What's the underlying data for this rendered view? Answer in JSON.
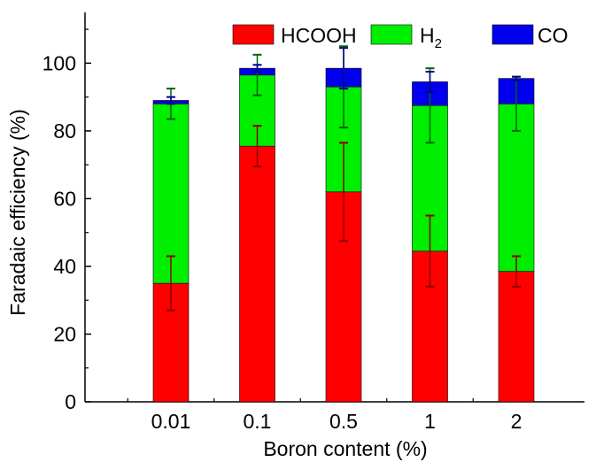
{
  "chart_data": {
    "type": "bar",
    "stacked": true,
    "title": "",
    "xlabel": "Boron content (%)",
    "ylabel": "Faradaic efficiency (%)",
    "ylim": [
      0,
      115
    ],
    "yticks": [
      0,
      20,
      40,
      60,
      80,
      100
    ],
    "categories": [
      "0.01",
      "0.1",
      "0.5",
      "1",
      "2"
    ],
    "series": [
      {
        "name": "HCOOH",
        "color": "#ff0000",
        "values": [
          35,
          75.5,
          62,
          44.5,
          38.5
        ],
        "error": [
          8,
          6,
          14.5,
          10.5,
          4.5
        ],
        "error_color": "#8b0000"
      },
      {
        "name": "H2",
        "color": "#00ee00",
        "values": [
          53,
          21,
          31,
          43,
          49.5
        ],
        "error": [
          4.5,
          6,
          12,
          11,
          8
        ],
        "error_color": "#006400"
      },
      {
        "name": "CO",
        "color": "#0000ee",
        "values": [
          1,
          2,
          5.5,
          7,
          7.5
        ],
        "error": [
          1,
          1,
          6,
          3,
          0.5
        ],
        "error_color": "#00008b"
      }
    ],
    "legend": {
      "position": "top-right",
      "labels": [
        "HCOOH",
        "H",
        "CO"
      ],
      "subscripts": [
        "",
        "2",
        ""
      ]
    },
    "grid": false
  }
}
